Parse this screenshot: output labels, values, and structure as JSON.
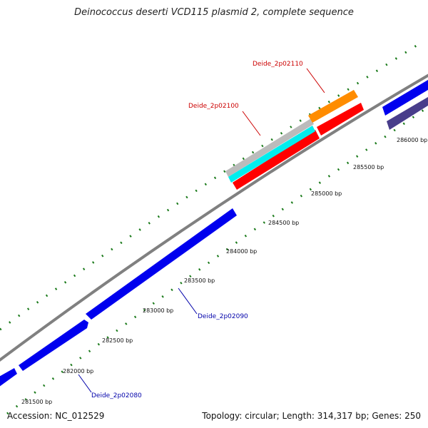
{
  "title": "Deinococcus deserti VCD115 plasmid 2, complete sequence",
  "footer": {
    "accession": "Accession: NC_012529",
    "summary": "Topology: circular; Length: 314,317 bp; Genes: 250"
  },
  "scale_ticks": [
    {
      "label": "281500 bp"
    },
    {
      "label": "282000 bp"
    },
    {
      "label": "282500 bp"
    },
    {
      "label": "283000 bp"
    },
    {
      "label": "283500 bp"
    },
    {
      "label": "284000 bp"
    },
    {
      "label": "284500 bp"
    },
    {
      "label": "285000 bp"
    },
    {
      "label": "285500 bp"
    },
    {
      "label": "286000 bp"
    }
  ],
  "gene_labels": [
    {
      "text": "Deide_2p02080",
      "color": "#0000aa"
    },
    {
      "text": "Deide_2p02090",
      "color": "#0000aa"
    },
    {
      "text": "Deide_2p02100",
      "color": "#cc0000"
    },
    {
      "text": "Deide_2p02110",
      "color": "#cc0000"
    }
  ],
  "colors": {
    "backbone": "#808080",
    "gene_blue": "#0000ee",
    "gene_red": "#ff0000",
    "gene_cyan": "#00eeee",
    "gene_orange": "#ff8c00",
    "gene_gray": "#bbbbbb",
    "gene_purple": "#483d8b",
    "tick_green": "#1a7a1a"
  }
}
